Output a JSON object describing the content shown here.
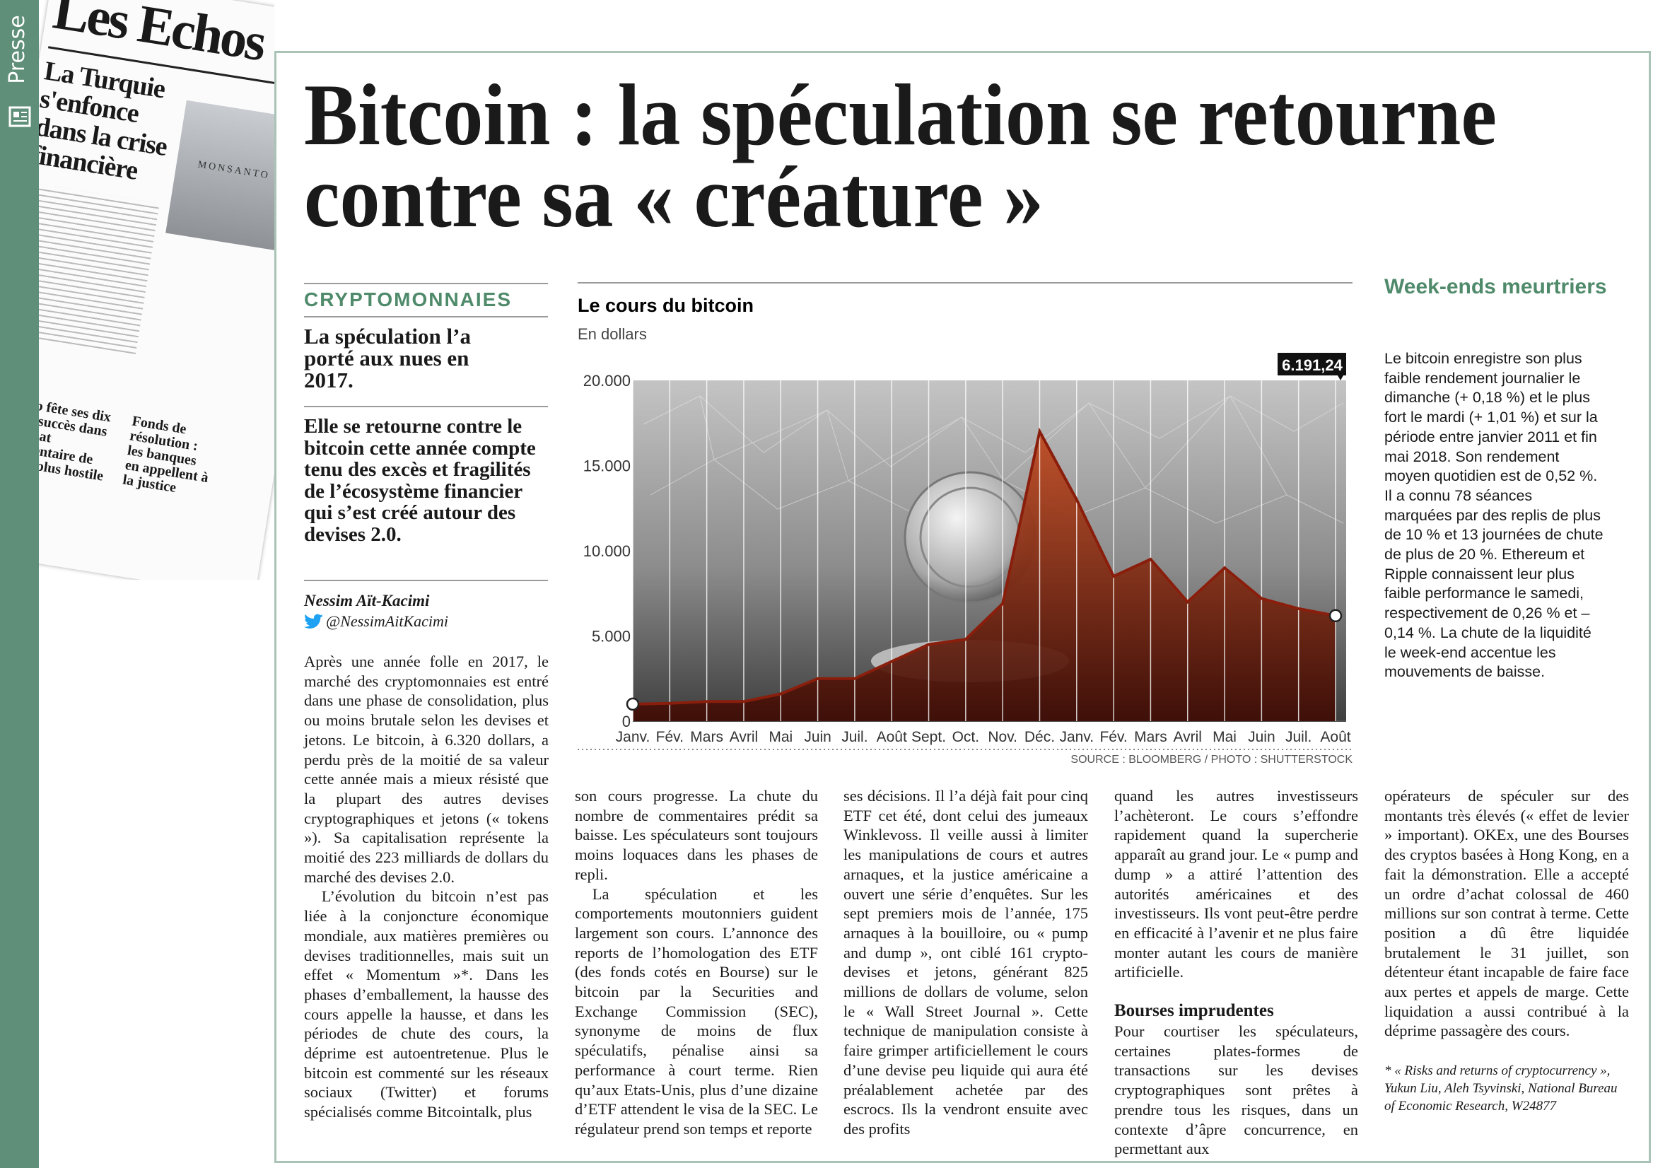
{
  "sidebar_label": "Presse",
  "thumbnail": {
    "masthead": "Les Echos",
    "headline": "La Turquie s'enfonce dans la crise financière",
    "photo_caption": "MONSANTO",
    "brief_1": "Airbnb fête ses dix ans de succès dans un climat réglementaire de plus en plus hostile",
    "brief_2": "Fonds de résolution : les banques en appellent à la justice"
  },
  "headline": [
    "Bitcoin : la spéculation se retourne",
    "contre sa « créature »"
  ],
  "kicker": "CRYPTOMONNAIES",
  "subhead_1": "La spéculation l’a porté aux nues en 2017.",
  "subhead_2": "Elle se retourne contre le bitcoin cette année compte tenu des excès et fragilités de l’écosystème financier qui s’est créé autour des devises 2.0.",
  "author": "Nessim Aït-Kacimi",
  "twitter": "@NessimAitKacimi",
  "columns": [
    [
      "Après une année folle en 2017, le marché des cryptomonnaies est entré dans une phase de consolidation, plus ou moins brutale selon les devises et jetons. Le bitcoin, à 6.320 dollars, a perdu près de la moitié de sa valeur cette année mais a mieux résisté que la plupart des autres devises cryptographiques et jetons (« tokens »). Sa capitalisation représente la moitié des 223 milliards de dollars du marché des devises 2.0.",
      "L’évolution du bitcoin n’est pas liée à la conjoncture économique mondiale, aux matières premières ou devises traditionnelles, mais suit un effet « Momentum »*. Dans les phases d’emballement, la hausse des cours appelle la hausse, et dans les périodes de chute des cours, la déprime est autoentretenue. Plus le bitcoin est commenté sur les réseaux sociaux (Twitter) et forums spécialisés comme Bitcointalk, plus"
    ],
    [
      "son cours progresse. La chute du nombre de commentaires prédit sa baisse. Les spéculateurs sont toujours moins loquaces dans les phases de repli.",
      "La spéculation et les comportements moutonniers guident largement son cours. L’annonce des reports de l’homologation des ETF (des fonds cotés en Bourse) sur le bitcoin par la Securities and Exchange Commission (SEC), synonyme de moins de flux spéculatifs, pénalise ainsi sa performance à court terme. Rien qu’aux Etats-Unis, plus d’une dizaine d’ETF attendent le visa de la SEC. Le régulateur prend son temps et reporte"
    ],
    [
      "ses décisions. Il l’a déjà fait pour cinq ETF cet été, dont celui des jumeaux Winklevoss. Il veille aussi à limiter les manipulations de cours et autres arnaques, et la justice américaine a ouvert une série d’enquêtes. Sur les sept premiers mois de l’année, 175 arnaques à la bouilloire, ou « pump and dump », ont ciblé 161 crypto-devises et jetons, générant 825 millions de dollars de volume, selon le « Wall Street Journal ». Cette technique de manipulation consiste à faire grimper artificiellement le cours d’une devise peu liquide qui aura été préalablement achetée par des escrocs. Ils la vendront ensuite avec des profits"
    ],
    [
      "quand les autres investisseurs l’achèteront. Le cours s’effondre rapidement quand la supercherie apparaît au grand jour. Le « pump and dump » a attiré l’attention des autorités américaines et des investisseurs. Ils vont peut-être perdre en efficacité à l’avenir et ne plus faire monter autant les cours de manière artificielle.",
      "Pour courtiser les spéculateurs, certaines plates-formes de transactions sur les devises cryptographiques sont prêtes à prendre tous les risques, dans un contexte d’âpre concurrence, en permettant aux"
    ],
    [
      "opérateurs de spéculer sur des montants très élevés (« effet de levier » important). OKEx, une des Bourses des cryptos basées à Hong Kong, en a fait la démonstration. Elle a accepté un ordre d’achat colossal de 460 millions sur son contrat à terme. Cette position a dû être liquidée brutalement le 31 juillet, son détenteur étant incapable de faire face aux pertes et appels de marge. Cette liquidation a aussi contribué à la déprime passagère des cours."
    ]
  ],
  "section_heading": "Bourses imprudentes",
  "footnote": "* « Risks and returns of cryptocurrency », Yukun Liu, Aleh Tsyvinski, National Bureau of Economic Research, W24877",
  "sidebar": {
    "title": "Week-ends meurtriers",
    "text": "Le bitcoin enregistre son plus faible rendement journalier le dimanche (+ 0,18 %) et le plus fort le mardi (+ 1,01 %) et sur la période entre janvier 2011 et fin mai 2018. Son rendement moyen quotidien est de 0,52 %. Il a connu 78 séances marquées par des replis de plus de 10 % et 13 journées de chute de plus de 20 %. Ethereum et Ripple connaissent leur plus faible performance le samedi, respectivement de 0,26 % et – 0,14 %. La chute de la liquidité le week-end accentue les mouvements de baisse."
  },
  "chart_data": {
    "type": "area",
    "title": "Le cours du bitcoin",
    "subtitle": "En dollars",
    "source": "SOURCE : BLOOMBERG / PHOTO : SHUTTERSTOCK",
    "categories": [
      "Janv.",
      "Fév.",
      "Mars",
      "Avril",
      "Mai",
      "Juin",
      "Juil.",
      "Août",
      "Sept.",
      "Oct.",
      "Nov.",
      "Déc.",
      "Janv.",
      "Fév.",
      "Mars",
      "Avril",
      "Mai",
      "Juin",
      "Juil.",
      "Août"
    ],
    "values": [
      1000,
      1050,
      1150,
      1150,
      1600,
      2500,
      2500,
      3500,
      4500,
      4800,
      6900,
      17000,
      13000,
      8500,
      9500,
      7000,
      9000,
      7200,
      6600,
      6191.24
    ],
    "value_labels": [
      null,
      null,
      null,
      null,
      null,
      null,
      null,
      null,
      null,
      null,
      null,
      null,
      null,
      null,
      null,
      null,
      null,
      null,
      null,
      "6.191,24"
    ],
    "color": "#8a1e0c",
    "ylim": [
      0,
      20000
    ],
    "yticks": [
      0,
      {
        "value": 5000,
        "label": "5.000"
      },
      {
        "value": 10000,
        "label": "10.000"
      },
      {
        "value": 15000,
        "label": "15.000"
      },
      {
        "value": 20000,
        "label": "20.000"
      }
    ],
    "xgrid": true
  }
}
